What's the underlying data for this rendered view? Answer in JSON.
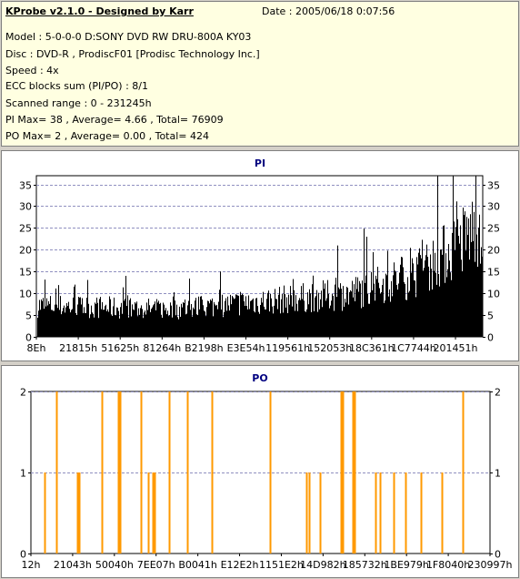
{
  "header": {
    "title": "KProbe v2.1.0 - Designed by Karr",
    "date": "Date : 2005/06/18 0:07:56",
    "lines": [
      "Model : 5-0-0-0 D:SONY    DVD RW DRU-800A  KY03",
      "Disc : DVD-R , ProdiscF01 [Prodisc Technology Inc.]",
      "Speed : 4x",
      "ECC blocks sum (PI/PO) : 8/1",
      "Scanned range : 0 - 231245h",
      "PI Max= 38 , Average= 4.66 , Total= 76909",
      "PO Max= 2 , Average= 0.00 , Total= 424"
    ]
  },
  "colors": {
    "pi": "#000000",
    "po": "#ff9900",
    "title": "#000080",
    "panel_bg": "#d4d0c8",
    "info_bg": "#ffffe1"
  },
  "chart_data": [
    {
      "type": "bar",
      "title": "PI",
      "x_ticks": [
        "8Eh",
        "21815h",
        "51625h",
        "81264h",
        "B2198h",
        "E3E54h",
        "119561h",
        "152053h",
        "18C361h",
        "1C7744h",
        "201451h"
      ],
      "ylim": [
        0,
        37
      ],
      "y_ticks": [
        0,
        5,
        10,
        15,
        20,
        25,
        30,
        35
      ],
      "grid": true,
      "profile_points": [
        [
          0,
          8
        ],
        [
          0.3,
          7
        ],
        [
          0.5,
          9
        ],
        [
          0.7,
          11
        ],
        [
          0.85,
          16
        ],
        [
          0.95,
          24
        ],
        [
          1.0,
          30
        ]
      ]
    },
    {
      "type": "bar",
      "title": "PO",
      "x_ticks": [
        "12h",
        "21043h",
        "50040h",
        "7EE07h",
        "B0041h",
        "E12E2h",
        "1151E2h",
        "14D982h",
        "185732h",
        "1BE979h",
        "1F8040h",
        "230997h"
      ],
      "ylim": [
        0,
        2
      ],
      "y_ticks": [
        0,
        1,
        2
      ],
      "grid": true,
      "spikes": [
        {
          "x": 0.03,
          "y": 1
        },
        {
          "x": 0.055,
          "y": 2
        },
        {
          "x": 0.1,
          "y": 1
        },
        {
          "x": 0.105,
          "y": 1
        },
        {
          "x": 0.155,
          "y": 2
        },
        {
          "x": 0.19,
          "y": 2
        },
        {
          "x": 0.195,
          "y": 2
        },
        {
          "x": 0.24,
          "y": 2
        },
        {
          "x": 0.255,
          "y": 1
        },
        {
          "x": 0.265,
          "y": 1
        },
        {
          "x": 0.27,
          "y": 1
        },
        {
          "x": 0.3,
          "y": 2
        },
        {
          "x": 0.34,
          "y": 2
        },
        {
          "x": 0.395,
          "y": 2
        },
        {
          "x": 0.52,
          "y": 2
        },
        {
          "x": 0.6,
          "y": 1
        },
        {
          "x": 0.605,
          "y": 1
        },
        {
          "x": 0.63,
          "y": 1
        },
        {
          "x": 0.675,
          "y": 2
        },
        {
          "x": 0.68,
          "y": 2
        },
        {
          "x": 0.7,
          "y": 2
        },
        {
          "x": 0.705,
          "y": 2
        },
        {
          "x": 0.75,
          "y": 1
        },
        {
          "x": 0.76,
          "y": 1
        },
        {
          "x": 0.79,
          "y": 1
        },
        {
          "x": 0.815,
          "y": 1
        },
        {
          "x": 0.85,
          "y": 1
        },
        {
          "x": 0.895,
          "y": 1
        },
        {
          "x": 0.94,
          "y": 2
        }
      ]
    }
  ]
}
